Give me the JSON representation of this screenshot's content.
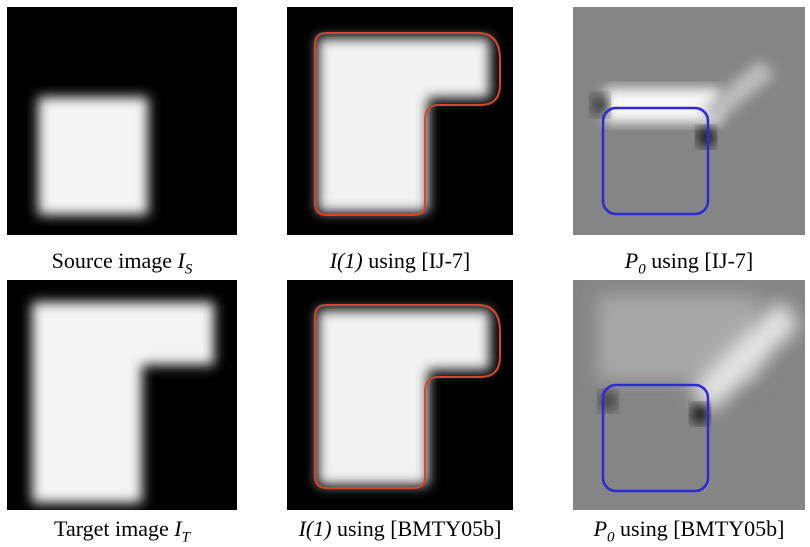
{
  "panels": [
    {
      "prefix": "Source image",
      "math": "I",
      "sub": "S"
    },
    {
      "math": "I(1)",
      "suffix": "using [IJ-7]"
    },
    {
      "math": "P",
      "sub": "0",
      "suffix": "using [IJ-7]"
    },
    {
      "prefix": "Target image",
      "math": "I",
      "sub": "T"
    },
    {
      "math": "I(1)",
      "suffix": "using [BMTY05b]"
    },
    {
      "math": "P",
      "sub": "0",
      "suffix": "using [BMTY05b]"
    }
  ]
}
